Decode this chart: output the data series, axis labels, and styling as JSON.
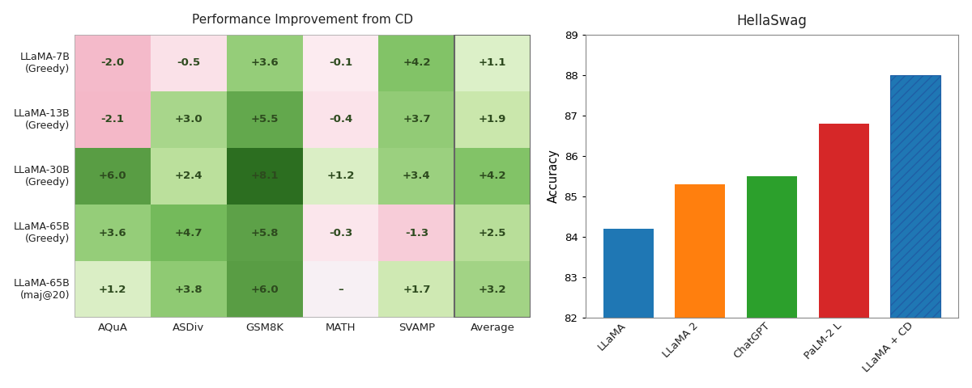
{
  "heatmap": {
    "title": "Performance Improvement from CD",
    "rows": [
      "LLaMA-7B\n(Greedy)",
      "LLaMA-13B\n(Greedy)",
      "LLaMA-30B\n(Greedy)",
      "LLaMA-65B\n(Greedy)",
      "LLaMA-65B\n(maj@20)"
    ],
    "cols": [
      "AQuA",
      "ASDiv",
      "GSM8K",
      "MATH",
      "SVAMP",
      "Average"
    ],
    "values": [
      [
        -2.0,
        -0.5,
        3.6,
        -0.1,
        4.2,
        1.1
      ],
      [
        -2.1,
        3.0,
        5.5,
        -0.4,
        3.7,
        1.9
      ],
      [
        6.0,
        2.4,
        8.1,
        1.2,
        3.4,
        4.2
      ],
      [
        3.6,
        4.7,
        5.8,
        -0.3,
        -1.3,
        2.5
      ],
      [
        1.2,
        3.8,
        6.0,
        null,
        1.7,
        3.2
      ]
    ],
    "labels": [
      [
        "-2.0",
        "-0.5",
        "+3.6",
        "-0.1",
        "+4.2",
        "+1.1"
      ],
      [
        "-2.1",
        "+3.0",
        "+5.5",
        "-0.4",
        "+3.7",
        "+1.9"
      ],
      [
        "+6.0",
        "+2.4",
        "+8.1",
        "+1.2",
        "+3.4",
        "+4.2"
      ],
      [
        "+3.6",
        "+4.7",
        "+5.8",
        "-0.3",
        "-1.3",
        "+2.5"
      ],
      [
        "+1.2",
        "+3.8",
        "+6.0",
        "–",
        "+1.7",
        "+3.2"
      ]
    ],
    "vmin": -2.1,
    "vmax": 8.1
  },
  "bar": {
    "title": "HellaSwag",
    "categories": [
      "LLaMA",
      "LLaMA 2",
      "ChatGPT",
      "PaLM-2 L",
      "LLaMA + CD"
    ],
    "values": [
      84.2,
      85.3,
      85.5,
      86.8,
      88.0
    ],
    "colors": [
      "#1f77b4",
      "#ff7f0e",
      "#2ca02c",
      "#d62728",
      "#1f77b4"
    ],
    "ylabel": "Accuracy",
    "ylim": [
      82,
      89
    ],
    "yticks": [
      82,
      83,
      84,
      85,
      86,
      87,
      88,
      89
    ],
    "hatch_last": true
  }
}
